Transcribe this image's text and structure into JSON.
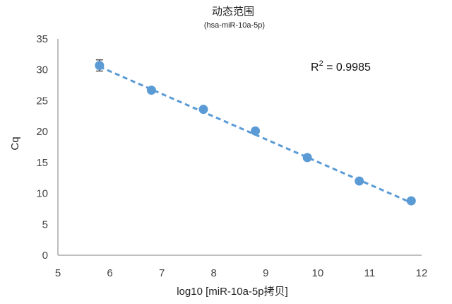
{
  "chart_data": {
    "type": "scatter",
    "title": "动态范围",
    "subtitle": "(hsa-miR-10a-5p)",
    "xlabel": "log10 [miR-10a-5p拷贝]",
    "ylabel": "Cq",
    "xlim": [
      5,
      12
    ],
    "ylim": [
      0,
      35
    ],
    "xticks": [
      5,
      6,
      7,
      8,
      9,
      10,
      11,
      12
    ],
    "yticks": [
      0,
      5,
      10,
      15,
      20,
      25,
      30,
      35
    ],
    "grid": false,
    "series": [
      {
        "x": [
          5.8,
          6.8,
          7.8,
          8.8,
          9.8,
          10.8,
          11.8
        ],
        "y": [
          30.7,
          26.7,
          23.6,
          20.1,
          15.8,
          12.0,
          8.8
        ],
        "error": [
          0.9,
          0,
          0,
          0,
          0,
          0,
          0
        ],
        "color": "#5b9bd5"
      }
    ],
    "trendline": {
      "type": "linear",
      "x": [
        5.8,
        11.8
      ],
      "y": [
        30.5,
        8.5
      ],
      "color": "#5b9bd5",
      "style": "dashed"
    },
    "annotation": {
      "label": "R",
      "superscript": "2",
      "value": " = 0.9985"
    }
  }
}
